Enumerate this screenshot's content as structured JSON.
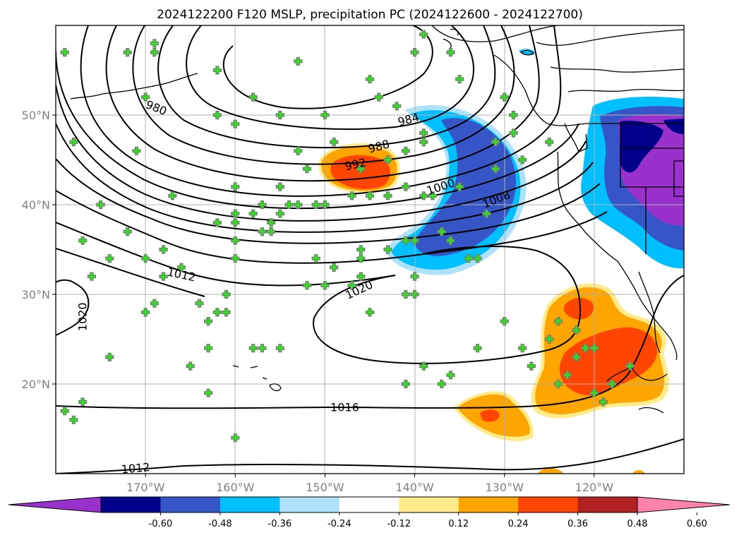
{
  "title": "2024122200 F120 MSLP, precipitation PC (2024122600 - 2024122700)",
  "chart_data": {
    "type": "contour map",
    "title": "2024122200 F120 MSLP, precipitation PC (2024122600 - 2024122700)",
    "lon_range": [
      -180,
      -110
    ],
    "lat_range": [
      10,
      60
    ],
    "lon_ticks": [
      {
        "value": -170,
        "label": "170°W"
      },
      {
        "value": -160,
        "label": "160°W"
      },
      {
        "value": -150,
        "label": "150°W"
      },
      {
        "value": -140,
        "label": "140°W"
      },
      {
        "value": -130,
        "label": "130°W"
      },
      {
        "value": -120,
        "label": "120°W"
      }
    ],
    "lat_ticks": [
      {
        "value": 20,
        "label": "20°N"
      },
      {
        "value": 30,
        "label": "30°N"
      },
      {
        "value": 40,
        "label": "40°N"
      },
      {
        "value": 50,
        "label": "50°N"
      }
    ],
    "grid": true,
    "isobar_labels": [
      {
        "text": "980",
        "lon": -168.8,
        "lat": 50.8,
        "angle": 22
      },
      {
        "text": "984",
        "lon": -140.7,
        "lat": 49.5,
        "angle": -15
      },
      {
        "text": "988",
        "lon": -144.0,
        "lat": 46.5,
        "angle": -15
      },
      {
        "text": "992",
        "lon": -146.6,
        "lat": 44.5,
        "angle": -12
      },
      {
        "text": "1000",
        "lon": -137.1,
        "lat": 42.0,
        "angle": -18
      },
      {
        "text": "1008",
        "lon": -130.9,
        "lat": 40.6,
        "angle": -22
      },
      {
        "text": "1012",
        "lon": -166.0,
        "lat": 32.2,
        "angle": 12
      },
      {
        "text": "1020",
        "lon": -146.2,
        "lat": 30.5,
        "angle": -25
      },
      {
        "text": "1020",
        "lon": -177.0,
        "lat": 27.5,
        "angle": -90
      },
      {
        "text": "1016",
        "lon": -147.8,
        "lat": 17.4,
        "angle": 0
      },
      {
        "text": "1012",
        "lon": -171.1,
        "lat": 10.6,
        "angle": -5
      }
    ],
    "colorbar": {
      "colors": [
        "#9932cc",
        "#00008b",
        "#3656c8",
        "#00bfff",
        "#aee2fa",
        "#ffffff",
        "#ffeb8c",
        "#ffa500",
        "#ff4500",
        "#b22222",
        "#ff82ab"
      ],
      "ticks": [
        "-0.60",
        "-0.48",
        "-0.36",
        "-0.24",
        "-0.12",
        "0.12",
        "0.24",
        "0.36",
        "0.48",
        "0.60"
      ],
      "extend": "both"
    },
    "station_markers": [
      [
        -179,
        57
      ],
      [
        -178,
        47
      ],
      [
        -172,
        57
      ],
      [
        -171,
        46
      ],
      [
        -170,
        52
      ],
      [
        -169,
        58
      ],
      [
        -169,
        57
      ],
      [
        -167,
        41
      ],
      [
        -162,
        55
      ],
      [
        -162,
        50
      ],
      [
        -158,
        52
      ],
      [
        -160,
        49
      ],
      [
        -155,
        50
      ],
      [
        -153,
        56
      ],
      [
        -150,
        50
      ],
      [
        -149,
        47
      ],
      [
        -145,
        54
      ],
      [
        -144,
        52
      ],
      [
        -142,
        51
      ],
      [
        -140,
        57
      ],
      [
        -139,
        59
      ],
      [
        -136,
        57
      ],
      [
        -135,
        54
      ],
      [
        -130,
        52
      ],
      [
        -129,
        50
      ],
      [
        -129,
        48
      ],
      [
        -131,
        47
      ],
      [
        -128,
        45
      ],
      [
        -139,
        48
      ],
      [
        -139,
        47
      ],
      [
        -141,
        46
      ],
      [
        -143,
        45
      ],
      [
        -146,
        44
      ],
      [
        -155,
        39
      ],
      [
        -156,
        38
      ],
      [
        -160,
        38
      ],
      [
        -155,
        42
      ],
      [
        -151,
        40
      ],
      [
        -150,
        40
      ],
      [
        -147,
        41
      ],
      [
        -145,
        41
      ],
      [
        -143,
        41
      ],
      [
        -141,
        42
      ],
      [
        -139,
        41
      ],
      [
        -138,
        41
      ],
      [
        -135,
        42
      ],
      [
        -132,
        39
      ],
      [
        -131,
        44
      ],
      [
        -125,
        47
      ],
      [
        -153,
        46
      ],
      [
        -152,
        44
      ],
      [
        -153,
        40
      ],
      [
        -154,
        40
      ],
      [
        -157,
        40
      ],
      [
        -158,
        39
      ],
      [
        -160,
        39
      ],
      [
        -160,
        42
      ],
      [
        -162,
        38
      ],
      [
        -175,
        40
      ],
      [
        -172,
        37
      ],
      [
        -168,
        35
      ],
      [
        -170,
        34
      ],
      [
        -174,
        34
      ],
      [
        -177,
        36
      ],
      [
        -176,
        32
      ],
      [
        -160,
        36
      ],
      [
        -160,
        34
      ],
      [
        -157,
        37
      ],
      [
        -156,
        37
      ],
      [
        -151,
        34
      ],
      [
        -146,
        34
      ],
      [
        -146,
        35
      ],
      [
        -143,
        35
      ],
      [
        -141,
        36
      ],
      [
        -140,
        36
      ],
      [
        -137,
        37
      ],
      [
        -136,
        36
      ],
      [
        -134,
        34
      ],
      [
        -140,
        32
      ],
      [
        -140,
        30
      ],
      [
        -141,
        30
      ],
      [
        -149,
        33
      ],
      [
        -150,
        31
      ],
      [
        -152,
        31
      ],
      [
        -147,
        31
      ],
      [
        -146,
        32
      ],
      [
        -133,
        34
      ],
      [
        -130,
        27
      ],
      [
        -133,
        24
      ],
      [
        -128,
        24
      ],
      [
        -125,
        25
      ],
      [
        -124,
        27
      ],
      [
        -122,
        26
      ],
      [
        -121,
        24
      ],
      [
        -122,
        23
      ],
      [
        -123,
        21
      ],
      [
        -124,
        20
      ],
      [
        -127,
        22
      ],
      [
        -136,
        21
      ],
      [
        -137,
        20
      ],
      [
        -139,
        22
      ],
      [
        -141,
        20
      ],
      [
        -145,
        28
      ],
      [
        -158,
        24
      ],
      [
        -161,
        28
      ],
      [
        -162,
        28
      ],
      [
        -161,
        30
      ],
      [
        -164,
        29
      ],
      [
        -166,
        33
      ],
      [
        -168,
        32
      ],
      [
        -169,
        29
      ],
      [
        -170,
        28
      ],
      [
        -174,
        23
      ],
      [
        -177,
        18
      ],
      [
        -179,
        17
      ],
      [
        -178,
        16
      ],
      [
        -163,
        19
      ],
      [
        -165,
        22
      ],
      [
        -155,
        24
      ],
      [
        -157,
        24
      ],
      [
        -163,
        27
      ],
      [
        -160,
        14
      ],
      [
        -163,
        24
      ],
      [
        -118,
        20
      ],
      [
        -119,
        18
      ],
      [
        -116,
        22
      ],
      [
        -120,
        24
      ],
      [
        -120,
        19
      ]
    ]
  }
}
